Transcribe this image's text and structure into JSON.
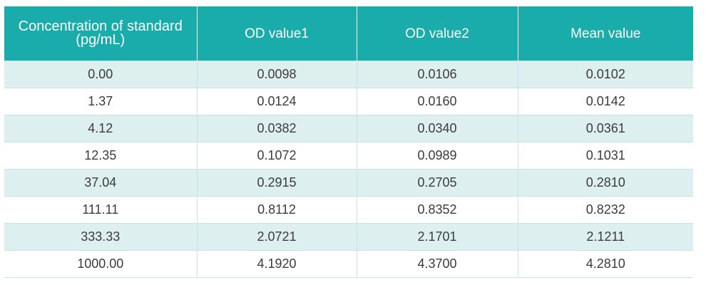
{
  "table": {
    "header": {
      "concentration_line1": "Concentration of standard",
      "concentration_line2": "(pg/mL)",
      "od1": "OD value1",
      "od2": "OD value2",
      "mean": "Mean value"
    },
    "rows": [
      {
        "concentration": "0.00",
        "od1": "0.0098",
        "od2": "0.0106",
        "mean": "0.0102"
      },
      {
        "concentration": "1.37",
        "od1": "0.0124",
        "od2": "0.0160",
        "mean": "0.0142"
      },
      {
        "concentration": "4.12",
        "od1": "0.0382",
        "od2": "0.0340",
        "mean": "0.0361"
      },
      {
        "concentration": "12.35",
        "od1": "0.1072",
        "od2": "0.0989",
        "mean": "0.1031"
      },
      {
        "concentration": "37.04",
        "od1": "0.2915",
        "od2": "0.2705",
        "mean": "0.2810"
      },
      {
        "concentration": "111.11",
        "od1": "0.8112",
        "od2": "0.8352",
        "mean": "0.8232"
      },
      {
        "concentration": "333.33",
        "od1": "2.0721",
        "od2": "2.1701",
        "mean": "2.1211"
      },
      {
        "concentration": "1000.00",
        "od1": "4.1920",
        "od2": "4.3700",
        "mean": "4.2810"
      }
    ]
  },
  "colors": {
    "header_bg": "#1aabab",
    "header_text": "#ffffff",
    "stripe_bg": "#ddefee",
    "row_bg": "#ffffff",
    "border": "#c7e4e2",
    "cell_text": "#3c3c3c"
  }
}
